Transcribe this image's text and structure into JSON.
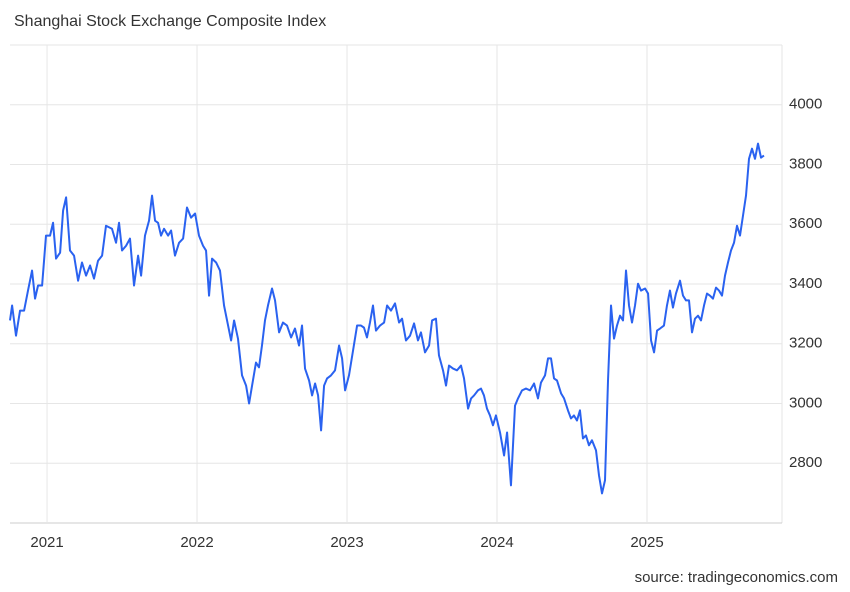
{
  "chart_data": {
    "type": "line",
    "title": "Shanghai Stock Exchange Composite Index",
    "source": "source: tradingeconomics.com",
    "color": "#2a62f0",
    "grid": true,
    "xlim": [
      2020.753,
      2025.9
    ],
    "xticks": [
      2021,
      2022,
      2023,
      2024,
      2025
    ],
    "ylim": [
      2600,
      4200
    ],
    "yticks": [
      2800,
      3000,
      3200,
      3400,
      3600,
      3800,
      4000
    ],
    "x": [
      2020.753,
      2020.767,
      2020.793,
      2020.82,
      2020.847,
      2020.873,
      2020.9,
      2020.92,
      2020.94,
      2020.967,
      2020.993,
      2021.02,
      2021.04,
      2021.06,
      2021.087,
      2021.107,
      2021.127,
      2021.153,
      2021.18,
      2021.207,
      2021.233,
      2021.26,
      2021.287,
      2021.313,
      2021.34,
      2021.367,
      2021.393,
      2021.433,
      2021.46,
      2021.48,
      2021.5,
      2021.527,
      2021.553,
      2021.58,
      2021.607,
      2021.627,
      2021.653,
      2021.68,
      2021.7,
      2021.72,
      2021.74,
      2021.76,
      2021.78,
      2021.807,
      2021.827,
      2021.853,
      2021.88,
      2021.907,
      2021.933,
      2021.96,
      2021.987,
      2022.013,
      2022.04,
      2022.06,
      2022.08,
      2022.1,
      2022.127,
      2022.153,
      2022.18,
      2022.207,
      2022.227,
      2022.247,
      2022.273,
      2022.3,
      2022.327,
      2022.347,
      2022.367,
      2022.393,
      2022.413,
      2022.433,
      2022.453,
      2022.473,
      2022.5,
      2022.52,
      2022.547,
      2022.573,
      2022.6,
      2022.627,
      2022.653,
      2022.68,
      2022.7,
      2022.72,
      2022.747,
      2022.767,
      2022.787,
      2022.807,
      2022.827,
      2022.847,
      2022.867,
      2022.893,
      2022.92,
      2022.947,
      2022.967,
      2022.987,
      2023.013,
      2023.04,
      2023.067,
      2023.093,
      2023.113,
      2023.133,
      2023.153,
      2023.173,
      2023.193,
      2023.22,
      2023.247,
      2023.267,
      2023.293,
      2023.32,
      2023.347,
      2023.367,
      2023.393,
      2023.42,
      2023.447,
      2023.473,
      2023.493,
      2023.52,
      2023.547,
      2023.567,
      2023.593,
      2023.613,
      2023.64,
      2023.66,
      2023.68,
      2023.707,
      2023.733,
      2023.76,
      2023.78,
      2023.807,
      2023.827,
      2023.847,
      2023.873,
      2023.893,
      2023.913,
      2023.933,
      2023.953,
      2023.973,
      2023.993,
      2024.02,
      2024.047,
      2024.067,
      2024.093,
      2024.12,
      2024.14,
      2024.167,
      2024.193,
      2024.22,
      2024.247,
      2024.273,
      2024.293,
      2024.32,
      2024.34,
      2024.36,
      2024.38,
      2024.4,
      2024.427,
      2024.447,
      2024.473,
      2024.493,
      2024.513,
      2024.533,
      2024.553,
      2024.573,
      2024.593,
      2024.613,
      2024.633,
      2024.66,
      2024.68,
      2024.7,
      2024.72,
      2024.74,
      2024.76,
      2024.78,
      2024.8,
      2024.82,
      2024.84,
      2024.86,
      2024.88,
      2024.9,
      2024.92,
      2024.94,
      2024.96,
      2024.987,
      2025.007,
      2025.027,
      2025.047,
      2025.067,
      2025.087,
      2025.113,
      2025.133,
      2025.153,
      2025.173,
      2025.193,
      2025.22,
      2025.24,
      2025.26,
      2025.28,
      2025.3,
      2025.32,
      2025.34,
      2025.36,
      2025.38,
      2025.4,
      2025.42,
      2025.44,
      2025.46,
      2025.48,
      2025.5,
      2025.52,
      2025.54,
      2025.56,
      2025.58,
      2025.6,
      2025.62,
      2025.64,
      2025.66,
      2025.68,
      2025.7,
      2025.72,
      2025.74,
      2025.76,
      2025.78
    ],
    "values": [
      3278,
      3328,
      3227,
      3311,
      3311,
      3378,
      3445,
      3351,
      3395,
      3395,
      3562,
      3562,
      3605,
      3485,
      3505,
      3646,
      3690,
      3512,
      3495,
      3411,
      3472,
      3428,
      3462,
      3418,
      3478,
      3495,
      3595,
      3585,
      3538,
      3605,
      3512,
      3528,
      3552,
      3395,
      3495,
      3428,
      3562,
      3612,
      3696,
      3612,
      3605,
      3562,
      3585,
      3562,
      3579,
      3495,
      3538,
      3552,
      3656,
      3622,
      3636,
      3562,
      3528,
      3512,
      3361,
      3485,
      3472,
      3445,
      3328,
      3261,
      3211,
      3278,
      3217,
      3094,
      3060,
      3000,
      3060,
      3137,
      3121,
      3194,
      3278,
      3328,
      3385,
      3345,
      3238,
      3271,
      3261,
      3221,
      3251,
      3194,
      3261,
      3117,
      3077,
      3027,
      3067,
      3027,
      2910,
      3060,
      3084,
      3094,
      3111,
      3194,
      3151,
      3044,
      3094,
      3177,
      3261,
      3261,
      3254,
      3221,
      3271,
      3328,
      3244,
      3261,
      3271,
      3328,
      3311,
      3335,
      3271,
      3284,
      3211,
      3227,
      3268,
      3211,
      3238,
      3171,
      3194,
      3278,
      3284,
      3161,
      3111,
      3060,
      3127,
      3117,
      3111,
      3127,
      3084,
      2983,
      3017,
      3027,
      3044,
      3050,
      3027,
      2983,
      2960,
      2927,
      2960,
      2903,
      2826,
      2903,
      2726,
      2993,
      3017,
      3044,
      3050,
      3044,
      3067,
      3017,
      3070,
      3094,
      3151,
      3151,
      3084,
      3077,
      3034,
      3017,
      2977,
      2950,
      2960,
      2943,
      2977,
      2883,
      2893,
      2860,
      2877,
      2843,
      2759,
      2699,
      2743,
      3077,
      3328,
      3217,
      3261,
      3294,
      3278,
      3445,
      3328,
      3271,
      3328,
      3401,
      3378,
      3385,
      3368,
      3211,
      3171,
      3244,
      3251,
      3261,
      3328,
      3378,
      3321,
      3368,
      3411,
      3361,
      3345,
      3345,
      3238,
      3284,
      3294,
      3278,
      3328,
      3368,
      3361,
      3351,
      3388,
      3378,
      3361,
      3428,
      3472,
      3512,
      3538,
      3595,
      3562,
      3629,
      3696,
      3819,
      3853,
      3819,
      3870,
      3823,
      3830
    ]
  }
}
